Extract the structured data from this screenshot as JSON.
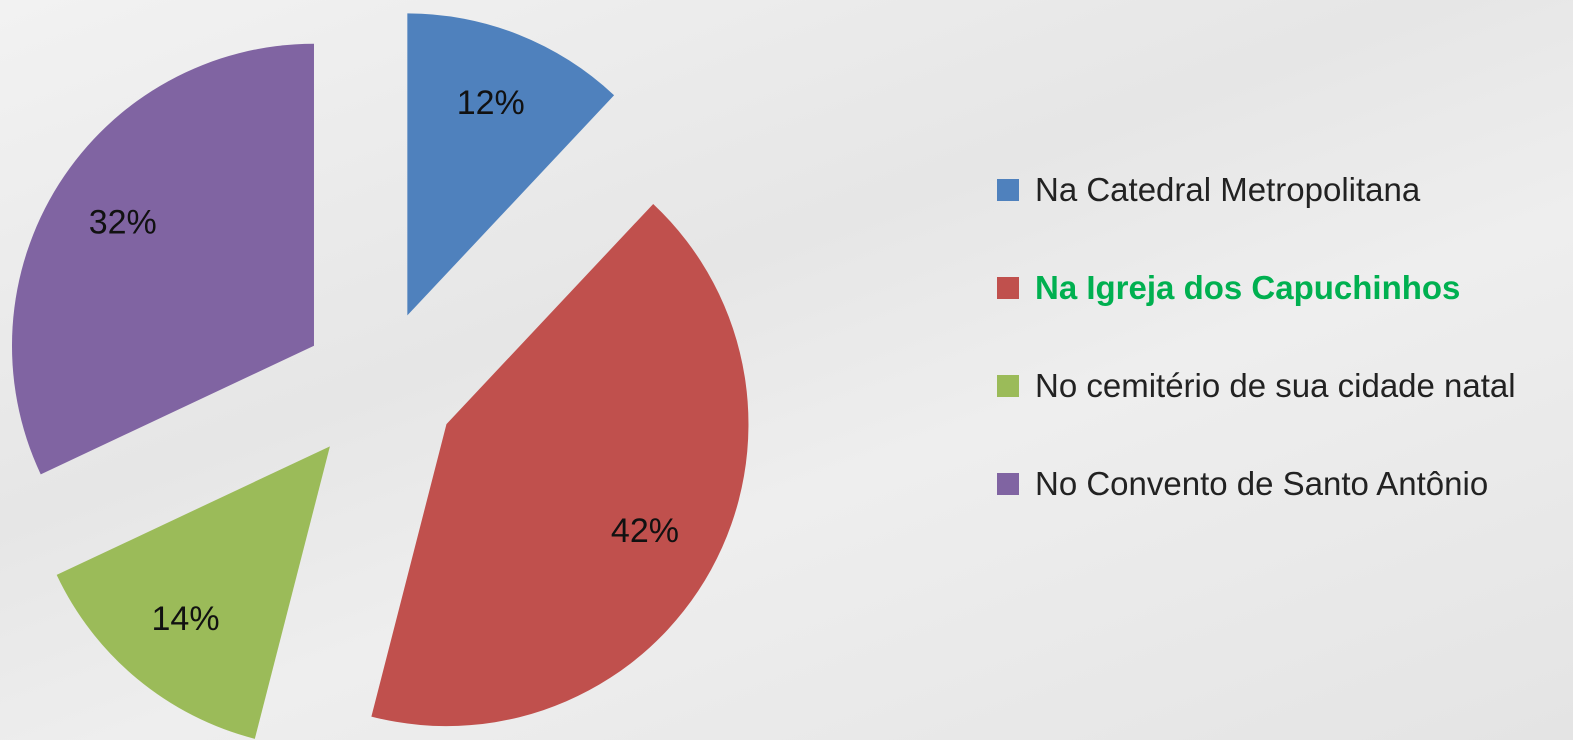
{
  "chart_data": {
    "type": "pie",
    "categories": [
      "Na Catedral Metropolitana",
      "Na Igreja dos Capuchinhos",
      "No cemitério de sua cidade natal",
      "No Convento de Santo Antônio"
    ],
    "values": [
      12,
      42,
      14,
      32
    ],
    "value_labels": [
      "12%",
      "42%",
      "14%",
      "32%"
    ],
    "colors": [
      "#4f81bd",
      "#c0504d",
      "#9bbb59",
      "#8064a2"
    ],
    "exploded": true,
    "legend": "right",
    "legend_text_colors": [
      "#222222",
      "#00b050",
      "#222222",
      "#222222"
    ],
    "legend_bold": [
      false,
      true,
      false,
      false
    ]
  }
}
